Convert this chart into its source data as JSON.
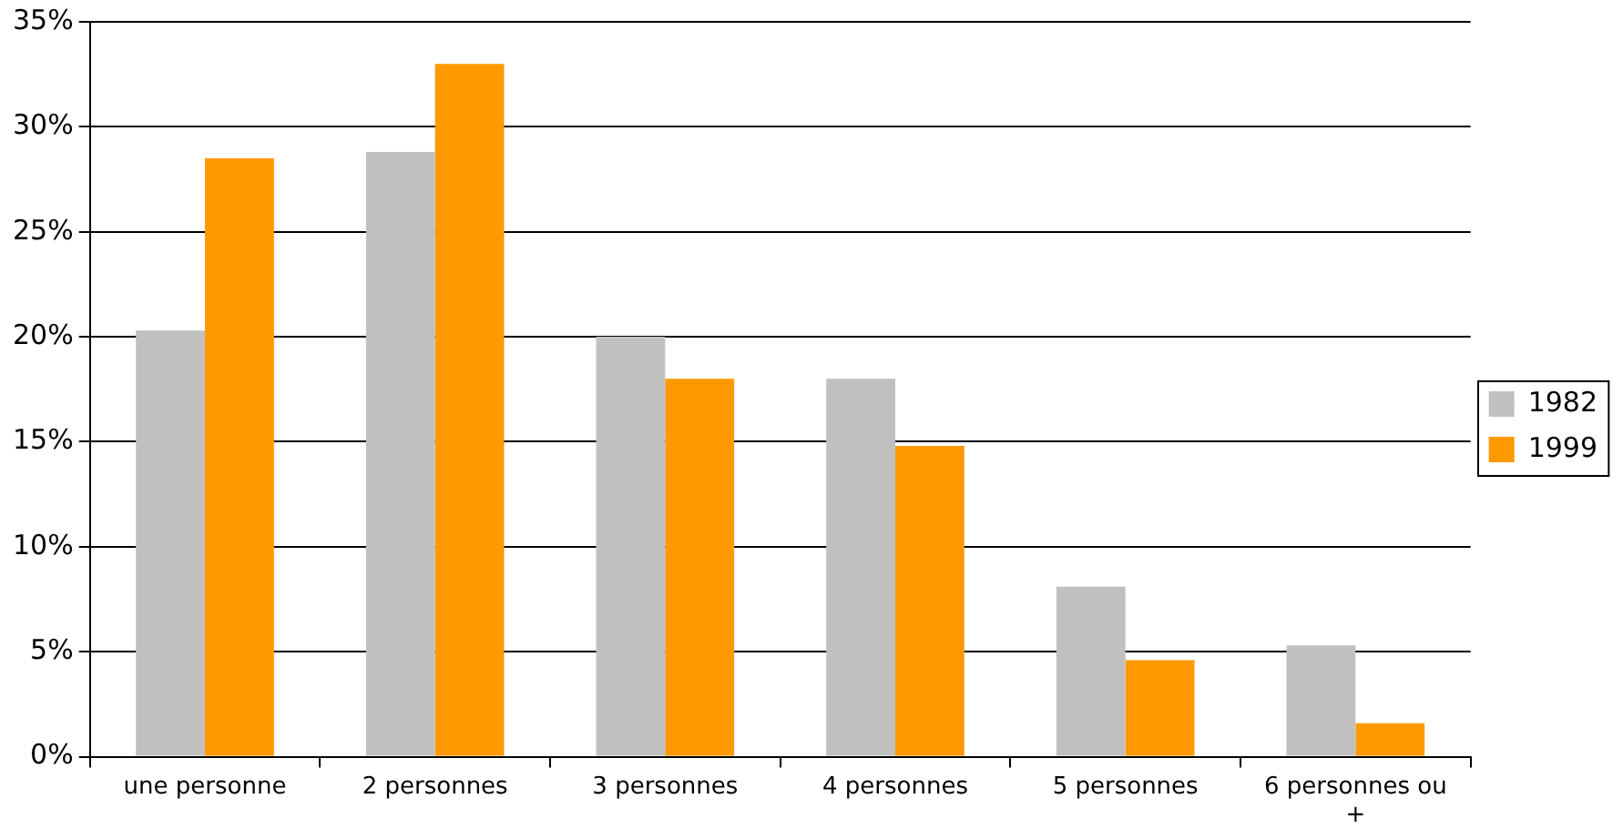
{
  "chart_data": {
    "type": "bar",
    "categories": [
      "une personne",
      "2 personnes",
      "3 personnes",
      "4 personnes",
      "5 personnes",
      "6 personnes ou +"
    ],
    "series": [
      {
        "name": "1982",
        "color": "#c0c0c0",
        "values": [
          20.3,
          28.8,
          20.0,
          18.0,
          8.1,
          5.3
        ]
      },
      {
        "name": "1999",
        "color": "#ff9900",
        "values": [
          28.5,
          33.0,
          18.0,
          14.8,
          4.6,
          1.6
        ]
      }
    ],
    "ylim": [
      0,
      35
    ],
    "yticks": [
      {
        "value": 0,
        "label": "0%"
      },
      {
        "value": 5,
        "label": "5%"
      },
      {
        "value": 10,
        "label": "10%"
      },
      {
        "value": 15,
        "label": "15%"
      },
      {
        "value": 20,
        "label": "20%"
      },
      {
        "value": 25,
        "label": "25%"
      },
      {
        "value": 30,
        "label": "30%"
      },
      {
        "value": 35,
        "label": "35%"
      }
    ],
    "grid": "y",
    "legend": "right"
  }
}
